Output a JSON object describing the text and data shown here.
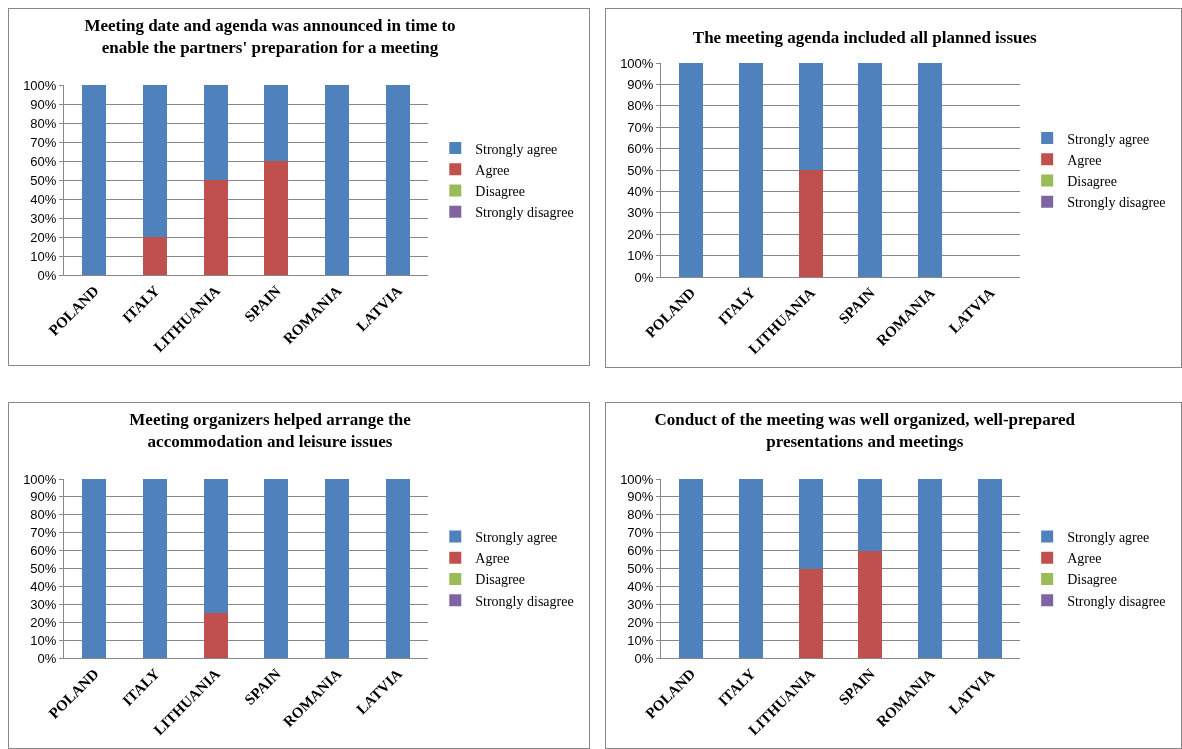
{
  "chart_data": [
    {
      "type": "bar",
      "stacked": true,
      "title": "Meeting date and agenda was announced in time to\nenable the partners' preparation for a meeting",
      "categories": [
        "POLAND",
        "ITALY",
        "LITHUANIA",
        "SPAIN",
        "ROMANIA",
        "LATVIA"
      ],
      "series": [
        {
          "name": "Strongly disagree",
          "color": "#8064a2",
          "values": [
            0,
            0,
            0,
            0,
            0,
            0
          ]
        },
        {
          "name": "Disagree",
          "color": "#9bbb59",
          "values": [
            0,
            0,
            0,
            0,
            0,
            0
          ]
        },
        {
          "name": "Agree",
          "color": "#c0504d",
          "values": [
            0,
            20,
            50,
            60,
            0,
            0
          ]
        },
        {
          "name": "Strongly agree",
          "color": "#4f81bd",
          "values": [
            100,
            80,
            50,
            40,
            100,
            100
          ]
        }
      ],
      "ylim": [
        0,
        100
      ],
      "yticks": [
        {
          "value": 0,
          "label": "0%"
        },
        {
          "value": 10,
          "label": "10%"
        },
        {
          "value": 20,
          "label": "20%"
        },
        {
          "value": 30,
          "label": "30%"
        },
        {
          "value": 40,
          "label": "40%"
        },
        {
          "value": 50,
          "label": "50%"
        },
        {
          "value": 60,
          "label": "60%"
        },
        {
          "value": 70,
          "label": "70%"
        },
        {
          "value": 80,
          "label": "80%"
        },
        {
          "value": 90,
          "label": "90%"
        },
        {
          "value": 100,
          "label": "100%"
        }
      ],
      "grid": "y",
      "legend": "right"
    },
    {
      "type": "bar",
      "stacked": true,
      "title": "The meeting agenda included all planned issues",
      "categories": [
        "POLAND",
        "ITALY",
        "LITHUANIA",
        "SPAIN",
        "ROMANIA",
        "LATVIA"
      ],
      "series": [
        {
          "name": "Strongly disagree",
          "color": "#8064a2",
          "values": [
            0,
            0,
            0,
            0,
            0,
            null
          ]
        },
        {
          "name": "Disagree",
          "color": "#9bbb59",
          "values": [
            0,
            0,
            0,
            0,
            0,
            null
          ]
        },
        {
          "name": "Agree",
          "color": "#c0504d",
          "values": [
            0,
            0,
            50,
            0,
            0,
            null
          ]
        },
        {
          "name": "Strongly agree",
          "color": "#4f81bd",
          "values": [
            100,
            100,
            50,
            100,
            100,
            null
          ]
        }
      ],
      "ylim": [
        0,
        100
      ],
      "yticks": [
        {
          "value": 0,
          "label": "0%"
        },
        {
          "value": 10,
          "label": "10%"
        },
        {
          "value": 20,
          "label": "20%"
        },
        {
          "value": 30,
          "label": "30%"
        },
        {
          "value": 40,
          "label": "40%"
        },
        {
          "value": 50,
          "label": "50%"
        },
        {
          "value": 60,
          "label": "60%"
        },
        {
          "value": 70,
          "label": "70%"
        },
        {
          "value": 80,
          "label": "80%"
        },
        {
          "value": 90,
          "label": "90%"
        },
        {
          "value": 100,
          "label": "100%"
        }
      ],
      "grid": "y",
      "legend": "right"
    },
    {
      "type": "bar",
      "stacked": true,
      "title": "Meeting organizers helped arrange the\naccommodation and leisure issues",
      "categories": [
        "POLAND",
        "ITALY",
        "LITHUANIA",
        "SPAIN",
        "ROMANIA",
        "LATVIA"
      ],
      "series": [
        {
          "name": "Strongly disagree",
          "color": "#8064a2",
          "values": [
            0,
            0,
            0,
            0,
            0,
            0
          ]
        },
        {
          "name": "Disagree",
          "color": "#9bbb59",
          "values": [
            0,
            0,
            0,
            0,
            0,
            0
          ]
        },
        {
          "name": "Agree",
          "color": "#c0504d",
          "values": [
            0,
            0,
            25,
            0,
            0,
            0
          ]
        },
        {
          "name": "Strongly agree",
          "color": "#4f81bd",
          "values": [
            100,
            100,
            75,
            100,
            100,
            100
          ]
        }
      ],
      "ylim": [
        0,
        100
      ],
      "yticks": [
        {
          "value": 0,
          "label": "0%"
        },
        {
          "value": 10,
          "label": "10%"
        },
        {
          "value": 20,
          "label": "20%"
        },
        {
          "value": 30,
          "label": "30%"
        },
        {
          "value": 40,
          "label": "40%"
        },
        {
          "value": 50,
          "label": "50%"
        },
        {
          "value": 60,
          "label": "60%"
        },
        {
          "value": 70,
          "label": "70%"
        },
        {
          "value": 80,
          "label": "80%"
        },
        {
          "value": 90,
          "label": "90%"
        },
        {
          "value": 100,
          "label": "100%"
        }
      ],
      "grid": "y",
      "legend": "right"
    },
    {
      "type": "bar",
      "stacked": true,
      "title": "Conduct of the meeting was well organized, well-prepared\npresentations and meetings",
      "categories": [
        "POLAND",
        "ITALY",
        "LITHUANIA",
        "SPAIN",
        "ROMANIA",
        "LATVIA"
      ],
      "series": [
        {
          "name": "Strongly disagree",
          "color": "#8064a2",
          "values": [
            0,
            0,
            0,
            0,
            0,
            0
          ]
        },
        {
          "name": "Disagree",
          "color": "#9bbb59",
          "values": [
            0,
            0,
            0,
            0,
            0,
            0
          ]
        },
        {
          "name": "Agree",
          "color": "#c0504d",
          "values": [
            0,
            0,
            50,
            60,
            0,
            0
          ]
        },
        {
          "name": "Strongly agree",
          "color": "#4f81bd",
          "values": [
            100,
            100,
            50,
            40,
            100,
            100
          ]
        }
      ],
      "ylim": [
        0,
        100
      ],
      "yticks": [
        {
          "value": 0,
          "label": "0%"
        },
        {
          "value": 10,
          "label": "10%"
        },
        {
          "value": 20,
          "label": "20%"
        },
        {
          "value": 30,
          "label": "30%"
        },
        {
          "value": 40,
          "label": "40%"
        },
        {
          "value": 50,
          "label": "50%"
        },
        {
          "value": 60,
          "label": "60%"
        },
        {
          "value": 70,
          "label": "70%"
        },
        {
          "value": 80,
          "label": "80%"
        },
        {
          "value": 90,
          "label": "90%"
        },
        {
          "value": 100,
          "label": "100%"
        }
      ],
      "grid": "y",
      "legend": "right"
    }
  ]
}
